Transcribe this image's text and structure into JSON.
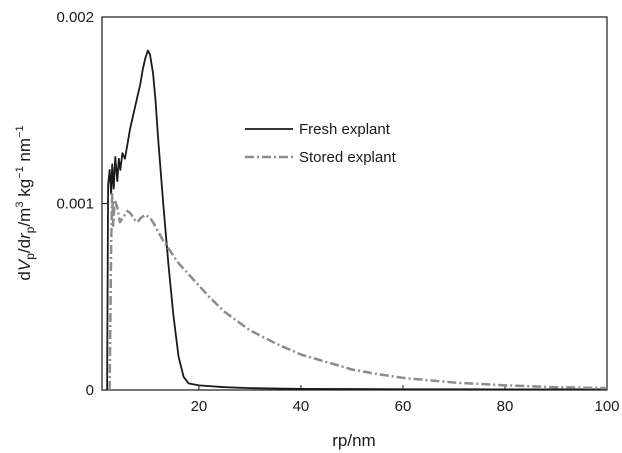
{
  "chart_data": {
    "type": "line",
    "x_label": "rp/nm",
    "y_label": {
      "d1": "d",
      "V": "V",
      "p1": "p",
      "slash1": "/d",
      "r": "r",
      "p2": "p",
      "unit_m": "/m",
      "exp_m": "3",
      "unit_kg": " kg",
      "exp_kg": "−1",
      "unit_nm": " nm",
      "exp_nm": "−1"
    },
    "xlim": [
      1,
      100
    ],
    "ylim": [
      0,
      0.002
    ],
    "x_ticks": [
      {
        "value": 20,
        "label": "20"
      },
      {
        "value": 40,
        "label": "40"
      },
      {
        "value": 60,
        "label": "60"
      },
      {
        "value": 80,
        "label": "80"
      },
      {
        "value": 100,
        "label": "100"
      }
    ],
    "y_ticks": [
      {
        "value": 0,
        "label": "0"
      },
      {
        "value": 0.001,
        "label": "0.001"
      },
      {
        "value": 0.002,
        "label": "0.002"
      }
    ],
    "legend_position": "upper-center",
    "series": [
      {
        "name": "Fresh explant",
        "color": "#1a1a1a",
        "dash": "solid",
        "x": [
          2.0,
          2.2,
          2.5,
          2.8,
          3.0,
          3.3,
          3.6,
          4.0,
          4.3,
          4.6,
          5.0,
          5.5,
          6.0,
          6.5,
          7.0,
          7.5,
          8.0,
          8.5,
          9.0,
          9.5,
          10.0,
          10.4,
          11.0,
          11.5,
          12.0,
          13.0,
          14.0,
          15.0,
          16.0,
          17.0,
          18.0,
          19.0,
          20.0,
          25.0,
          30.0,
          40.0,
          50.0,
          60.0,
          70.0,
          80.0,
          90.0,
          100.0
        ],
        "y": [
          0.0,
          0.0011,
          0.00118,
          0.00105,
          0.00121,
          0.00108,
          0.00125,
          0.00112,
          0.00124,
          0.00118,
          0.00127,
          0.00124,
          0.00132,
          0.0014,
          0.00146,
          0.00152,
          0.00158,
          0.00164,
          0.00172,
          0.00178,
          0.00182,
          0.0018,
          0.0017,
          0.00155,
          0.00135,
          0.001,
          0.00068,
          0.0004,
          0.00018,
          7e-05,
          3.5e-05,
          3e-05,
          2.5e-05,
          1.5e-05,
          1e-05,
          6e-06,
          5e-06,
          4e-06,
          4e-06,
          3e-06,
          3e-06,
          3e-06
        ]
      },
      {
        "name": "Stored explant",
        "color": "#8c8c8c",
        "dash": "dash-dot",
        "x": [
          2.5,
          2.8,
          3.0,
          3.2,
          3.5,
          4.0,
          4.5,
          5.0,
          5.5,
          6.0,
          6.5,
          7.0,
          7.5,
          8.0,
          8.5,
          9.0,
          9.5,
          10.0,
          10.5,
          11.0,
          12.0,
          13.0,
          14.0,
          15.0,
          16.0,
          18.0,
          20.0,
          22.0,
          25.0,
          28.0,
          30.0,
          35.0,
          40.0,
          45.0,
          50.0,
          55.0,
          60.0,
          70.0,
          80.0,
          90.0,
          100.0
        ],
        "y": [
          0.0,
          0.0008,
          0.00105,
          0.00088,
          0.00102,
          0.00098,
          0.0009,
          0.00092,
          0.00094,
          0.00096,
          0.00095,
          0.00093,
          0.00091,
          0.0009,
          0.00092,
          0.00093,
          0.00094,
          0.00093,
          0.00092,
          0.0009,
          0.00085,
          0.0008,
          0.00076,
          0.00072,
          0.00068,
          0.00062,
          0.00056,
          0.0005,
          0.00042,
          0.00036,
          0.00032,
          0.00025,
          0.00019,
          0.00015,
          0.00011,
          8.5e-05,
          6.5e-05,
          4e-05,
          2.5e-05,
          1.5e-05,
          1e-05
        ]
      }
    ]
  }
}
